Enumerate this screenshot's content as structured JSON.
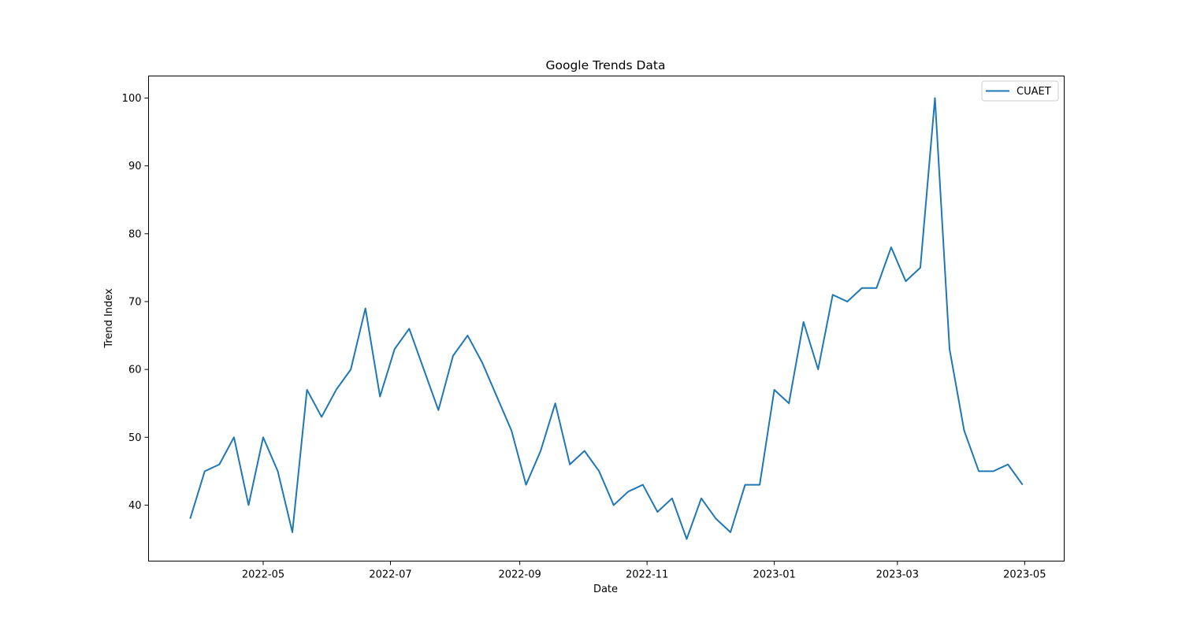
{
  "chart_data": {
    "type": "line",
    "title": "Google Trends Data",
    "xlabel": "Date",
    "ylabel": "Trend Index",
    "x_tick_labels": [
      "2022-05",
      "2022-07",
      "2022-09",
      "2022-11",
      "2023-01",
      "2023-03",
      "2023-05"
    ],
    "y_ticks": [
      40,
      50,
      60,
      70,
      80,
      90,
      100
    ],
    "legend_position": "top-right",
    "grid": false,
    "series": [
      {
        "name": "CUAET",
        "color": "#1f77b4",
        "x": [
          "2022-03-27",
          "2022-04-03",
          "2022-04-10",
          "2022-04-17",
          "2022-04-24",
          "2022-05-01",
          "2022-05-08",
          "2022-05-15",
          "2022-05-22",
          "2022-05-29",
          "2022-06-05",
          "2022-06-12",
          "2022-06-19",
          "2022-06-26",
          "2022-07-03",
          "2022-07-10",
          "2022-07-17",
          "2022-07-24",
          "2022-07-31",
          "2022-08-07",
          "2022-08-14",
          "2022-08-21",
          "2022-08-28",
          "2022-09-04",
          "2022-09-11",
          "2022-09-18",
          "2022-09-25",
          "2022-10-02",
          "2022-10-09",
          "2022-10-16",
          "2022-10-23",
          "2022-10-30",
          "2022-11-06",
          "2022-11-13",
          "2022-11-20",
          "2022-11-27",
          "2022-12-04",
          "2022-12-11",
          "2022-12-18",
          "2022-12-25",
          "2023-01-01",
          "2023-01-08",
          "2023-01-15",
          "2023-01-22",
          "2023-01-29",
          "2023-02-05",
          "2023-02-12",
          "2023-02-19",
          "2023-02-26",
          "2023-03-05",
          "2023-03-12",
          "2023-03-19",
          "2023-03-26",
          "2023-04-02",
          "2023-04-09",
          "2023-04-16",
          "2023-04-23",
          "2023-04-30"
        ],
        "values": [
          38,
          45,
          46,
          50,
          40,
          50,
          45,
          36,
          57,
          53,
          57,
          60,
          69,
          56,
          63,
          66,
          60,
          54,
          62,
          65,
          61,
          56,
          51,
          43,
          48,
          55,
          46,
          48,
          45,
          40,
          42,
          43,
          39,
          41,
          35,
          41,
          38,
          36,
          43,
          43,
          57,
          55,
          67,
          60,
          71,
          70,
          72,
          72,
          78,
          73,
          75,
          100,
          63,
          51,
          45,
          45,
          46,
          43
        ]
      }
    ]
  }
}
